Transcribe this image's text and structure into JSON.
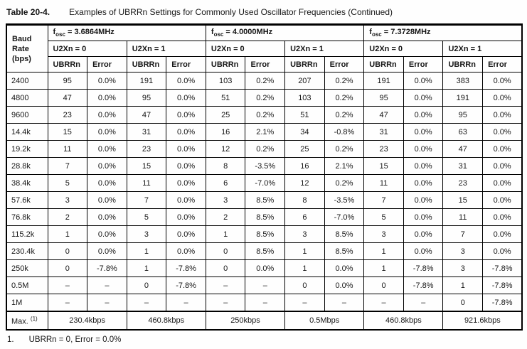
{
  "title": {
    "label": "Table 20-4.",
    "text": "Examples of UBRRn Settings for Commonly Used Oscillator Frequencies (Continued)"
  },
  "table": {
    "baud_header": {
      "line1": "Baud",
      "line2": "Rate",
      "line3": "(bps)"
    },
    "osc_sections": [
      {
        "f": "f",
        "sub": "osc",
        "eq": " = 3.6864MHz"
      },
      {
        "f": "f",
        "sub": "osc",
        "eq": " = 4.0000MHz"
      },
      {
        "f": "f",
        "sub": "osc",
        "eq": " = 7.3728MHz"
      }
    ],
    "u2x_labels": [
      "U2Xn = 0",
      "U2Xn = 1",
      "U2Xn = 0",
      "U2Xn = 1",
      "U2Xn = 0",
      "U2Xn = 1"
    ],
    "col_headers": [
      "UBRRn",
      "Error",
      "UBRRn",
      "Error",
      "UBRRn",
      "Error",
      "UBRRn",
      "Error",
      "UBRRn",
      "Error",
      "UBRRn",
      "Error"
    ],
    "rows": [
      {
        "baud": "2400",
        "cells": [
          "95",
          "0.0%",
          "191",
          "0.0%",
          "103",
          "0.2%",
          "207",
          "0.2%",
          "191",
          "0.0%",
          "383",
          "0.0%"
        ]
      },
      {
        "baud": "4800",
        "cells": [
          "47",
          "0.0%",
          "95",
          "0.0%",
          "51",
          "0.2%",
          "103",
          "0.2%",
          "95",
          "0.0%",
          "191",
          "0.0%"
        ]
      },
      {
        "baud": "9600",
        "cells": [
          "23",
          "0.0%",
          "47",
          "0.0%",
          "25",
          "0.2%",
          "51",
          "0.2%",
          "47",
          "0.0%",
          "95",
          "0.0%"
        ]
      },
      {
        "baud": "14.4k",
        "cells": [
          "15",
          "0.0%",
          "31",
          "0.0%",
          "16",
          "2.1%",
          "34",
          "-0.8%",
          "31",
          "0.0%",
          "63",
          "0.0%"
        ]
      },
      {
        "baud": "19.2k",
        "cells": [
          "11",
          "0.0%",
          "23",
          "0.0%",
          "12",
          "0.2%",
          "25",
          "0.2%",
          "23",
          "0.0%",
          "47",
          "0.0%"
        ]
      },
      {
        "baud": "28.8k",
        "cells": [
          "7",
          "0.0%",
          "15",
          "0.0%",
          "8",
          "-3.5%",
          "16",
          "2.1%",
          "15",
          "0.0%",
          "31",
          "0.0%"
        ]
      },
      {
        "baud": "38.4k",
        "cells": [
          "5",
          "0.0%",
          "11",
          "0.0%",
          "6",
          "-7.0%",
          "12",
          "0.2%",
          "11",
          "0.0%",
          "23",
          "0.0%"
        ]
      },
      {
        "baud": "57.6k",
        "cells": [
          "3",
          "0.0%",
          "7",
          "0.0%",
          "3",
          "8.5%",
          "8",
          "-3.5%",
          "7",
          "0.0%",
          "15",
          "0.0%"
        ]
      },
      {
        "baud": "76.8k",
        "cells": [
          "2",
          "0.0%",
          "5",
          "0.0%",
          "2",
          "8.5%",
          "6",
          "-7.0%",
          "5",
          "0.0%",
          "11",
          "0.0%"
        ]
      },
      {
        "baud": "115.2k",
        "cells": [
          "1",
          "0.0%",
          "3",
          "0.0%",
          "1",
          "8.5%",
          "3",
          "8.5%",
          "3",
          "0.0%",
          "7",
          "0.0%"
        ]
      },
      {
        "baud": "230.4k",
        "cells": [
          "0",
          "0.0%",
          "1",
          "0.0%",
          "0",
          "8.5%",
          "1",
          "8.5%",
          "1",
          "0.0%",
          "3",
          "0.0%"
        ]
      },
      {
        "baud": "250k",
        "cells": [
          "0",
          "-7.8%",
          "1",
          "-7.8%",
          "0",
          "0.0%",
          "1",
          "0.0%",
          "1",
          "-7.8%",
          "3",
          "-7.8%"
        ]
      },
      {
        "baud": "0.5M",
        "cells": [
          "–",
          "–",
          "0",
          "-7.8%",
          "–",
          "–",
          "0",
          "0.0%",
          "0",
          "-7.8%",
          "1",
          "-7.8%"
        ]
      },
      {
        "baud": "1M",
        "cells": [
          "–",
          "–",
          "–",
          "–",
          "–",
          "–",
          "–",
          "–",
          "–",
          "–",
          "0",
          "-7.8%"
        ]
      }
    ],
    "max_row": {
      "label": "Max.",
      "sup": "(1)",
      "values": [
        "230.4kbps",
        "460.8kbps",
        "250kbps",
        "0.5Mbps",
        "460.8kbps",
        "921.6kbps"
      ]
    }
  },
  "footnote": {
    "number": "1.",
    "text": "UBRRn = 0, Error = 0.0%"
  }
}
